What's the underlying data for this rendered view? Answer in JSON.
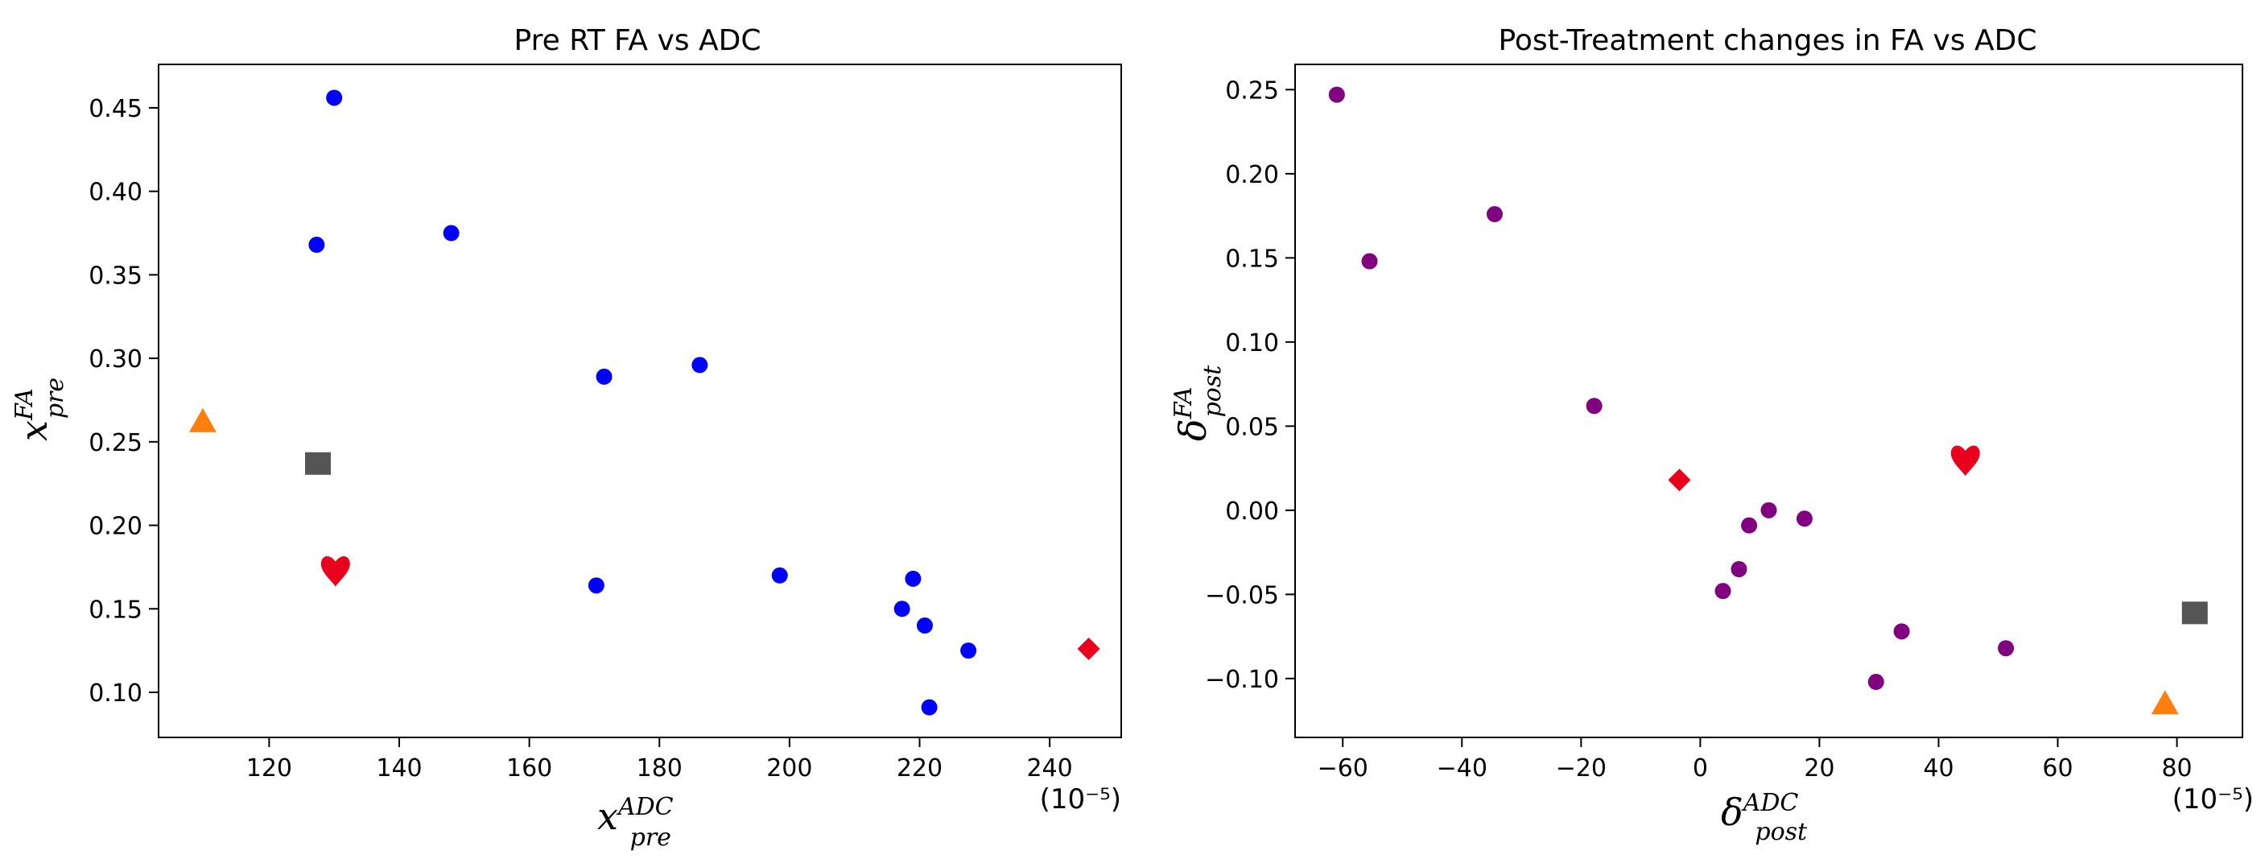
{
  "chart_data": [
    {
      "type": "scatter",
      "title": "Pre RT FA vs ADC",
      "xlabel": {
        "base": "x",
        "sup": "ADC",
        "sub": "pre"
      },
      "ylabel": {
        "base": "x",
        "sup": "FA",
        "sub": "pre"
      },
      "x_scale_label": "(10⁻⁵)",
      "xlim": [
        103,
        251
      ],
      "ylim": [
        0.073,
        0.476
      ],
      "xticks": [
        120,
        140,
        160,
        180,
        200,
        220,
        240
      ],
      "xtick_labels": [
        "120",
        "140",
        "160",
        "180",
        "200",
        "220",
        "240"
      ],
      "yticks": [
        0.1,
        0.15,
        0.2,
        0.25,
        0.3,
        0.35,
        0.4,
        0.45
      ],
      "ytick_labels": [
        "0.10",
        "0.15",
        "0.20",
        "0.25",
        "0.30",
        "0.35",
        "0.40",
        "0.45"
      ],
      "grid": false,
      "series": [
        {
          "marker": "circle",
          "color": "#0000ff",
          "points": [
            {
              "x": 130,
              "y": 0.456
            },
            {
              "x": 127.3,
              "y": 0.368
            },
            {
              "x": 148,
              "y": 0.375
            },
            {
              "x": 171.5,
              "y": 0.289
            },
            {
              "x": 186.2,
              "y": 0.296
            },
            {
              "x": 170.3,
              "y": 0.164
            },
            {
              "x": 198.5,
              "y": 0.17
            },
            {
              "x": 219,
              "y": 0.168
            },
            {
              "x": 217.3,
              "y": 0.15
            },
            {
              "x": 220.8,
              "y": 0.14
            },
            {
              "x": 227.5,
              "y": 0.125
            },
            {
              "x": 221.5,
              "y": 0.091
            }
          ]
        },
        {
          "marker": "triangle",
          "color": "#ff7f0e",
          "points": [
            {
              "x": 109.8,
              "y": 0.262
            }
          ]
        },
        {
          "marker": "square",
          "color": "#555555",
          "points": [
            {
              "x": 127.5,
              "y": 0.237
            }
          ]
        },
        {
          "marker": "heart",
          "color": "#e8001c",
          "points": [
            {
              "x": 130.2,
              "y": 0.173
            }
          ]
        },
        {
          "marker": "diamond",
          "color": "#e8001c",
          "points": [
            {
              "x": 246,
              "y": 0.126
            }
          ]
        }
      ]
    },
    {
      "type": "scatter",
      "title": "Post-Treatment changes in FA vs ADC",
      "xlabel": {
        "base": "δ",
        "sup": "ADC",
        "sub": "post"
      },
      "ylabel": {
        "base": "δ",
        "sup": "FA",
        "sub": "post"
      },
      "x_scale_label": "(10⁻⁵)",
      "xlim": [
        -68,
        91
      ],
      "ylim": [
        -0.135,
        0.265
      ],
      "xticks": [
        -60,
        -40,
        -20,
        0,
        20,
        40,
        60,
        80
      ],
      "xtick_labels": [
        "−60",
        "−40",
        "−20",
        "0",
        "20",
        "40",
        "60",
        "80"
      ],
      "yticks": [
        -0.1,
        -0.05,
        0.0,
        0.05,
        0.1,
        0.15,
        0.2,
        0.25
      ],
      "ytick_labels": [
        "−0.10",
        "−0.05",
        "0.00",
        "0.05",
        "0.10",
        "0.15",
        "0.20",
        "0.25"
      ],
      "grid": false,
      "series": [
        {
          "marker": "circle",
          "color": "#800080",
          "points": [
            {
              "x": -61,
              "y": 0.247
            },
            {
              "x": -55.5,
              "y": 0.148
            },
            {
              "x": -34.5,
              "y": 0.176
            },
            {
              "x": -17.8,
              "y": 0.062
            },
            {
              "x": 11.5,
              "y": 0.0
            },
            {
              "x": 8.2,
              "y": -0.009
            },
            {
              "x": 17.5,
              "y": -0.005
            },
            {
              "x": 6.5,
              "y": -0.035
            },
            {
              "x": 3.8,
              "y": -0.048
            },
            {
              "x": 33.8,
              "y": -0.072
            },
            {
              "x": 51.3,
              "y": -0.082
            },
            {
              "x": 29.5,
              "y": -0.102
            }
          ]
        },
        {
          "marker": "heart",
          "color": "#e8001c",
          "points": [
            {
              "x": 44.5,
              "y": 0.03
            }
          ]
        },
        {
          "marker": "diamond",
          "color": "#e8001c",
          "points": [
            {
              "x": -3.5,
              "y": 0.018
            }
          ]
        },
        {
          "marker": "square",
          "color": "#555555",
          "points": [
            {
              "x": 83,
              "y": -0.061
            }
          ]
        },
        {
          "marker": "triangle",
          "color": "#ff7f0e",
          "points": [
            {
              "x": 78,
              "y": -0.115
            }
          ]
        }
      ]
    }
  ]
}
